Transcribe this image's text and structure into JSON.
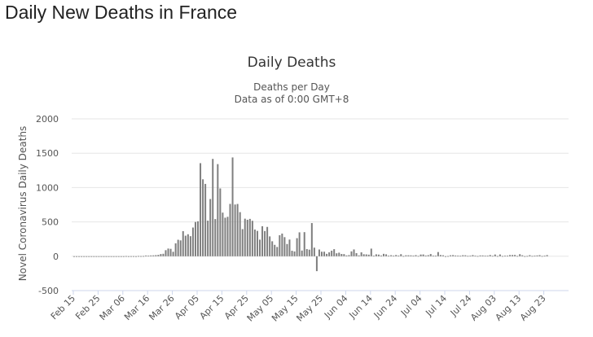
{
  "page": {
    "title": "Daily New Deaths in France"
  },
  "chart_data": {
    "type": "bar",
    "title": "Daily Deaths",
    "subtitle_lines": [
      "Deaths per Day",
      "Data as of 0:00 GMT+8"
    ],
    "ylabel": "Novel Coronavirus Daily Deaths",
    "xlabel": "",
    "ylim": [
      -500,
      2000
    ],
    "yticks": [
      -500,
      0,
      500,
      1000,
      1500,
      2000
    ],
    "grid": true,
    "bar_color": "#7f7f7f",
    "x_start": "Feb 15",
    "x_tick_labels": [
      "Feb 15",
      "Feb 25",
      "Mar 06",
      "Mar 16",
      "Mar 26",
      "Apr 05",
      "Apr 15",
      "Apr 25",
      "May 05",
      "May 15",
      "May 25",
      "Jun 04",
      "Jun 14",
      "Jun 24",
      "Jul 04",
      "Jul 14",
      "Jul 24",
      "Aug 03",
      "Aug 13",
      "Aug 23"
    ],
    "series": [
      {
        "values": [
          0,
          0,
          0,
          0,
          0,
          0,
          0,
          0,
          0,
          0,
          0,
          0,
          0,
          0,
          0,
          0,
          0,
          0,
          0,
          0,
          0,
          2,
          0,
          1,
          1,
          0,
          3,
          2,
          3,
          11,
          7,
          12,
          13,
          16,
          20,
          32,
          36,
          88,
          112,
          108,
          65,
          188,
          240,
          231,
          365,
          299,
          320,
          292,
          418,
          499,
          509,
          1355,
          1120,
          1053,
          518,
          833,
          1417,
          541,
          1341,
          987,
          635,
          561,
          574,
          762,
          1438,
          753,
          761,
          642,
          395,
          547,
          531,
          544,
          516,
          389,
          369,
          242,
          437,
          367,
          427,
          289,
          218,
          166,
          135,
          306,
          330,
          278,
          178,
          243,
          80,
          70,
          263,
          348,
          83,
          351,
          104,
          96,
          483,
          125,
          -217,
          98,
          66,
          66,
          35,
          57,
          81,
          103,
          43,
          52,
          33,
          31,
          12,
          17,
          71,
          99,
          45,
          13,
          57,
          29,
          27,
          23,
          111,
          9,
          28,
          24,
          11,
          35,
          28,
          8,
          15,
          8,
          18,
          10,
          30,
          3,
          14,
          14,
          13,
          10,
          16,
          4,
          25,
          26,
          11,
          16,
          32,
          9,
          9,
          61,
          18,
          14,
          0,
          3,
          14,
          17,
          11,
          10,
          6,
          15,
          14,
          5,
          8,
          17,
          7,
          3,
          12,
          12,
          7,
          8,
          18,
          5,
          25,
          3,
          26,
          3,
          7,
          7,
          18,
          18,
          19,
          4,
          30,
          14,
          1,
          4,
          16,
          4,
          9,
          12,
          16,
          3,
          8,
          17
        ]
      }
    ]
  }
}
